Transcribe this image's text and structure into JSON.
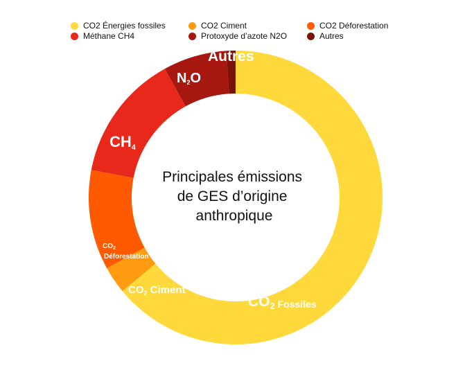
{
  "chart_data": {
    "type": "pie",
    "title": "Principales émissions de GES d’origine anthropique",
    "title_lines": [
      "Principales émissions",
      "de GES d’origine",
      "anthropique"
    ],
    "legend_position": "top",
    "slices": [
      {
        "name": "CO2 Énergies fossiles",
        "value": 64,
        "color": "#FFD93B"
      },
      {
        "name": "CO2 Ciment",
        "value": 3,
        "color": "#FF9B11"
      },
      {
        "name": "CO2 Déforestation",
        "value": 11,
        "color": "#FF5A00"
      },
      {
        "name": "Méthane CH4",
        "value": 14,
        "color": "#E8281B"
      },
      {
        "name": "Protoxyde d’azote N2O",
        "value": 7,
        "color": "#A6170F"
      },
      {
        "name": "Autres",
        "value": 1,
        "color": "#7A1208"
      }
    ],
    "slice_labels": [
      {
        "main": "CO",
        "sub": "2",
        "rest": " Fossiles"
      },
      {
        "main": "CO",
        "sub": "2",
        "rest": " Ciment"
      },
      {
        "main": "CO",
        "sub": "2",
        "rest": "Déforestation"
      },
      {
        "main": "CH",
        "sub": "4",
        "rest": ""
      },
      {
        "main": "N",
        "sub": "2",
        "rest": "O"
      },
      {
        "main": "Autres",
        "sub": "",
        "rest": ""
      }
    ]
  }
}
